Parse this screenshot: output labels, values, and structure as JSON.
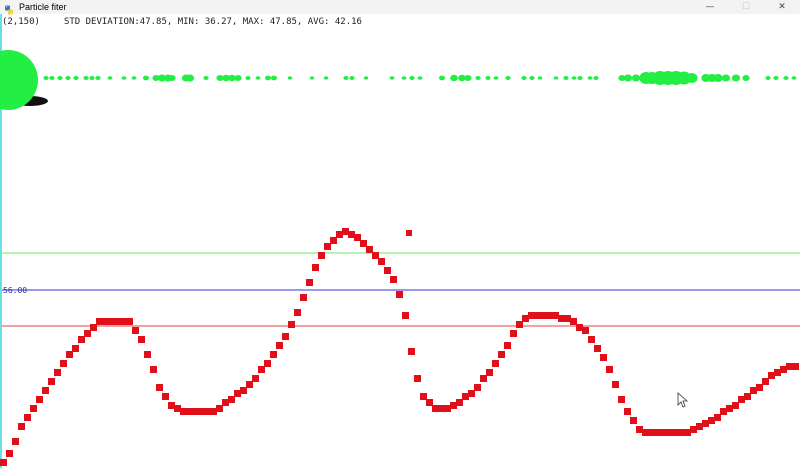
{
  "window": {
    "title": "Particle fiter",
    "minimize_glyph": "—",
    "maximize_glyph": "☐",
    "close_glyph": "✕"
  },
  "stats": {
    "coord": "(2,150)",
    "summary": "STD DEVIATION:47.85, MIN: 36.27, MAX: 47.85, AVG: 42.16"
  },
  "reference_label": "56.00",
  "colors": {
    "particle": "#22ee44",
    "terrain": "#e0101a",
    "green_line": "#66ee66",
    "blue_line": "#3333cc",
    "red_line": "#dd4444",
    "left_edge": "#66e0e0",
    "robot_shadow": "#111111"
  },
  "icons": {
    "app": "python-icon",
    "cursor": "mouse-pointer-icon"
  }
}
